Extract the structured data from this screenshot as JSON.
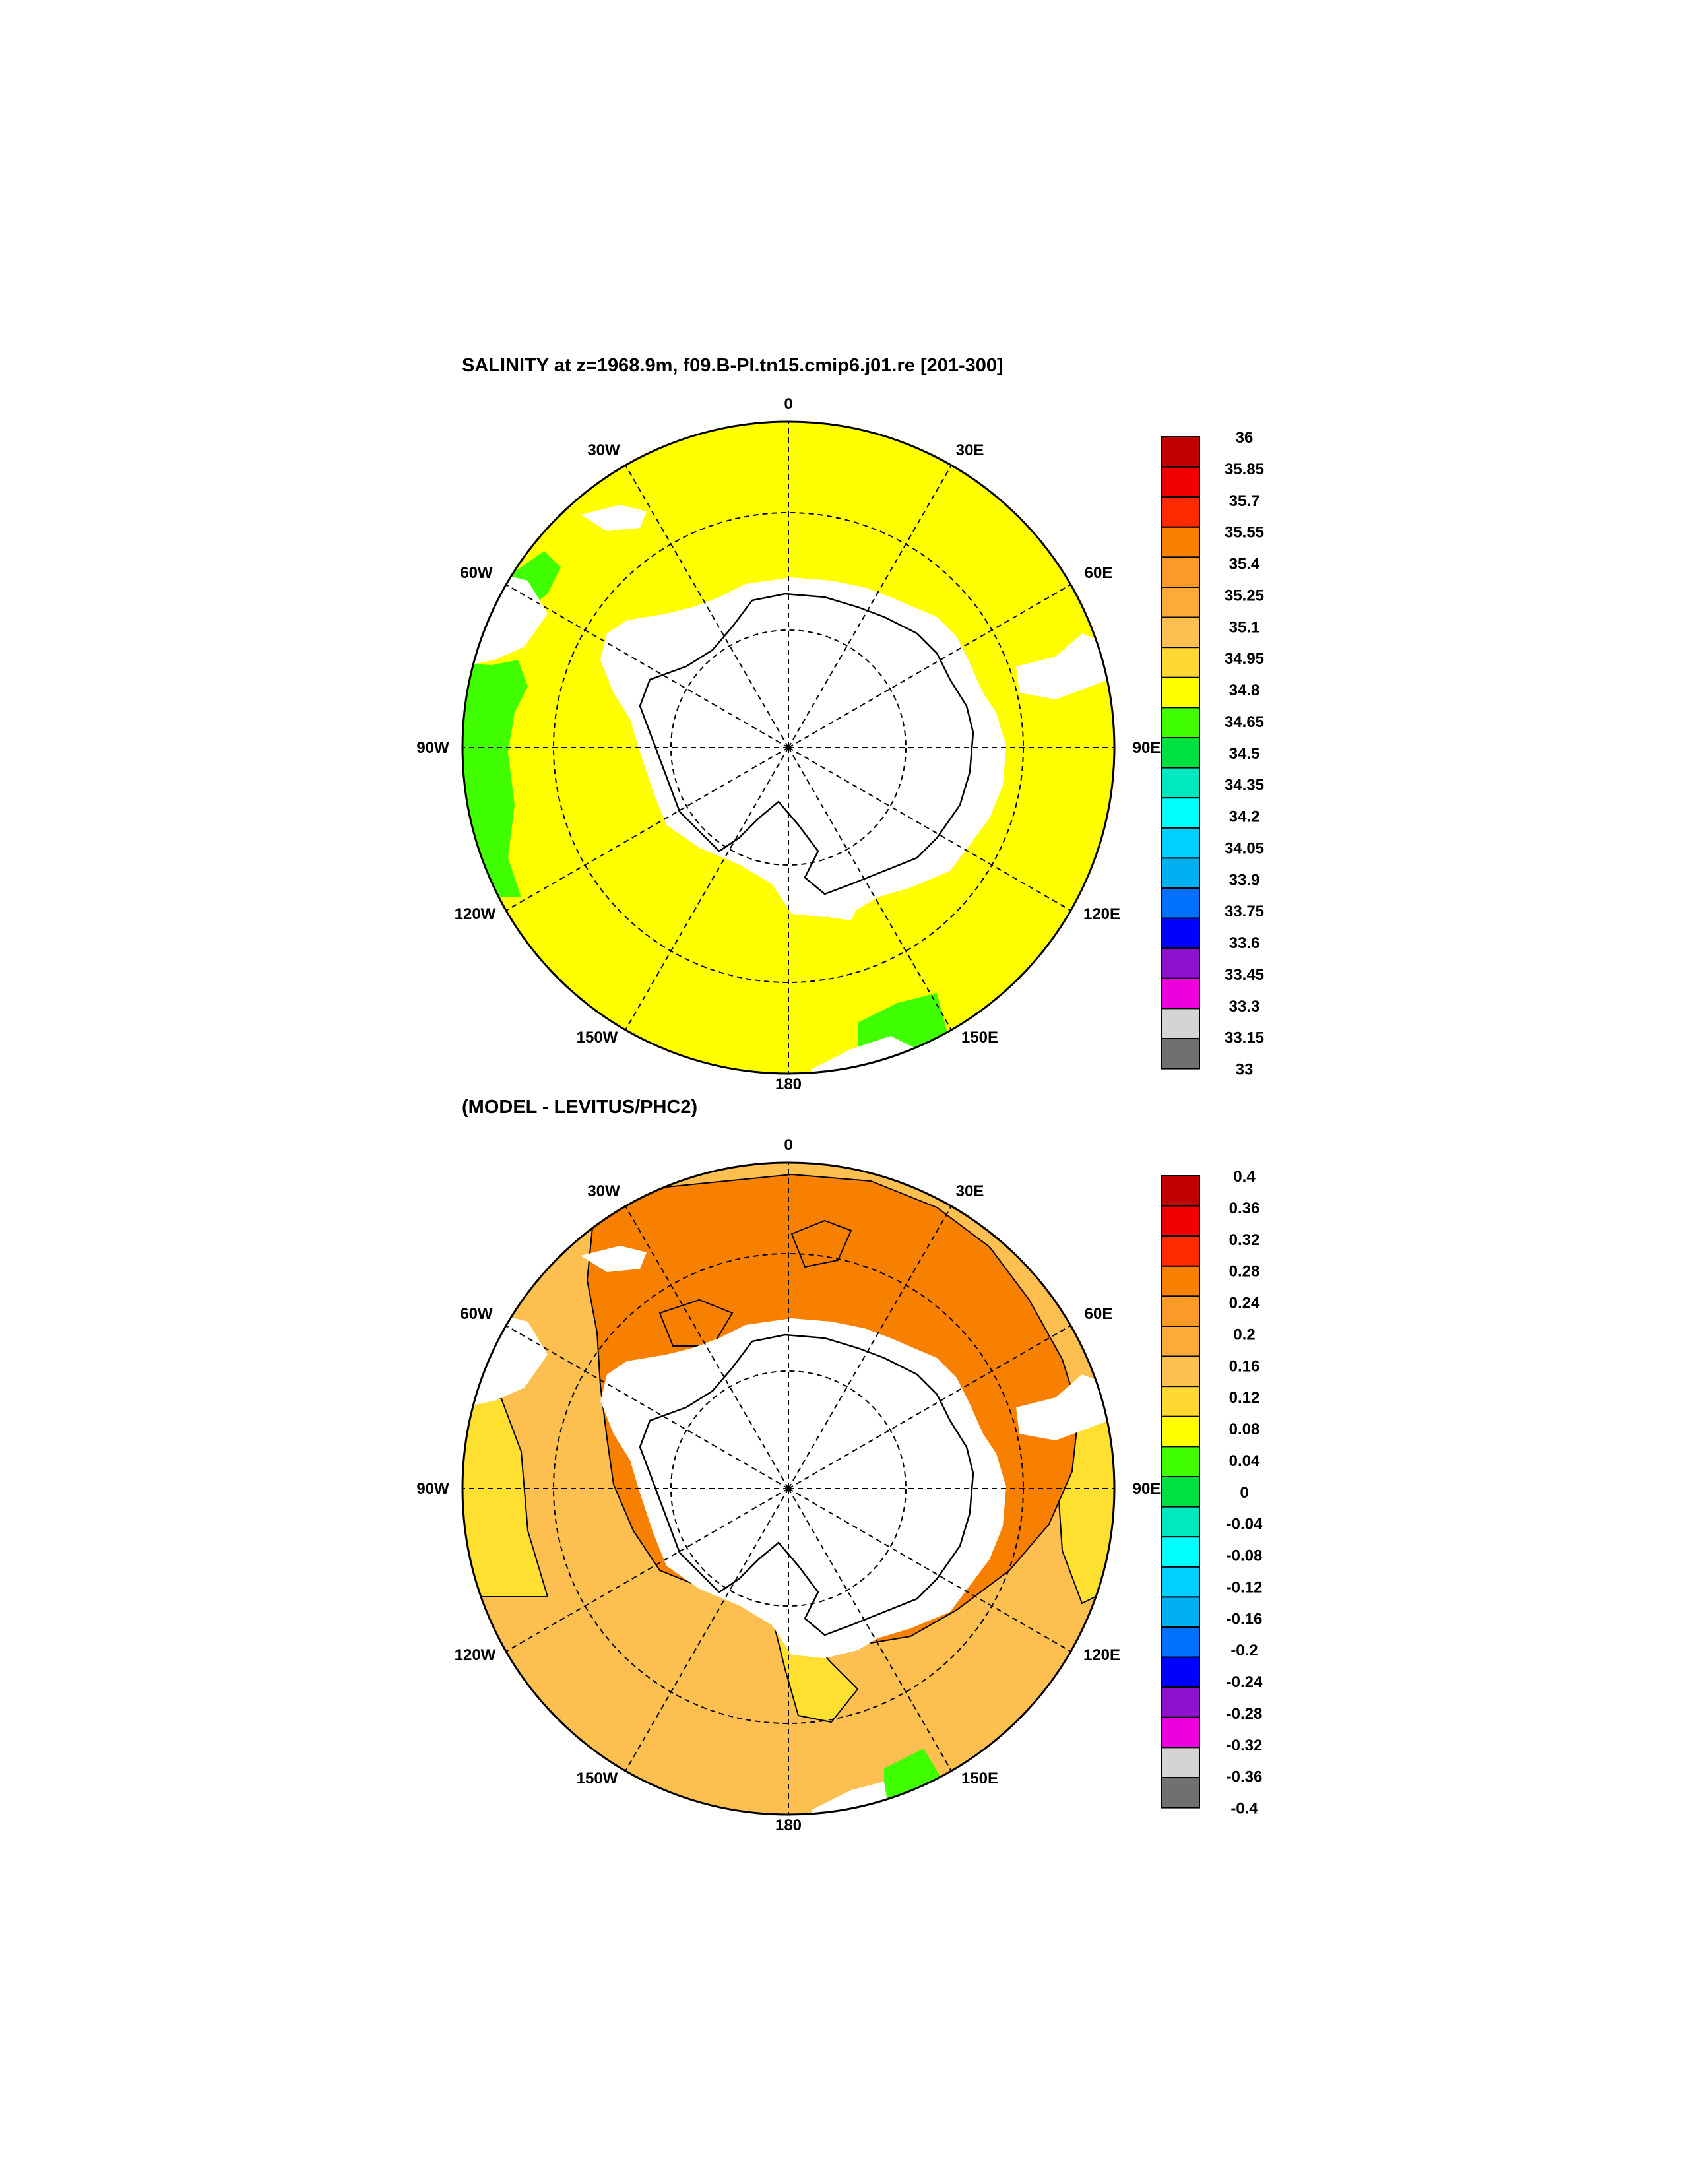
{
  "panels": [
    {
      "title": "SALINITY at z=1968.9m, f09.B-PI.tn15.cmip6.j01.re [201-300]",
      "field_fill": "#ffff00",
      "field_value_label": "34.95",
      "lon_labels": [
        "0",
        "30E",
        "60E",
        "90E",
        "120E",
        "150E",
        "180",
        "150W",
        "120W",
        "90W",
        "60W",
        "30W"
      ],
      "colorbar": {
        "labels": [
          "36",
          "35.85",
          "35.7",
          "35.55",
          "35.4",
          "35.25",
          "35.1",
          "34.95",
          "34.8",
          "34.65",
          "34.5",
          "34.35",
          "34.2",
          "34.05",
          "33.9",
          "33.75",
          "33.6",
          "33.45",
          "33.3",
          "33.15",
          "33"
        ]
      }
    },
    {
      "title": "(MODEL - LEVITUS/PHC2)",
      "field_fill": "#fcaa38",
      "lon_labels": [
        "0",
        "30E",
        "60E",
        "90E",
        "120E",
        "150E",
        "180",
        "150W",
        "120W",
        "90W",
        "60W",
        "30W"
      ],
      "colorbar": {
        "labels": [
          "0.4",
          "0.36",
          "0.32",
          "0.28",
          "0.24",
          "0.2",
          "0.16",
          "0.12",
          "0.08",
          "0.04",
          "0",
          "-0.04",
          "-0.08",
          "-0.12",
          "-0.16",
          "-0.2",
          "-0.24",
          "-0.28",
          "-0.32",
          "-0.36",
          "-0.4"
        ]
      }
    }
  ],
  "colors": {
    "palette": [
      "#c00000",
      "#f00000",
      "#ff2a00",
      "#f88000",
      "#fc9a28",
      "#fcaa38",
      "#fdc050",
      "#ffd832",
      "#ffff00",
      "#40ff00",
      "#00e040",
      "#00e8c0",
      "#00ffff",
      "#00d0ff",
      "#00b0f0",
      "#0070ff",
      "#0000ff",
      "#9010d0",
      "#ee00dd",
      "#d4d4d4",
      "#707070"
    ],
    "land": "#ffffff",
    "diff_light": "#fdc050",
    "diff_dark": "#f88000",
    "diff_yellow": "#ffe030",
    "diff_green": "#40ff00"
  }
}
